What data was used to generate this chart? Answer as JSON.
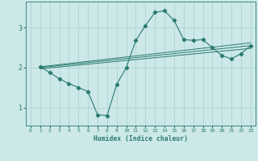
{
  "xlabel": "Humidex (Indice chaleur)",
  "bg_color": "#cce8e8",
  "grid_color": "#aed4d4",
  "line_color": "#2a7a70",
  "xlim": [
    -0.5,
    23.5
  ],
  "ylim": [
    0.55,
    3.65
  ],
  "yticks": [
    1,
    2,
    3
  ],
  "xticks": [
    0,
    1,
    2,
    3,
    4,
    5,
    6,
    7,
    8,
    9,
    10,
    11,
    12,
    13,
    14,
    15,
    16,
    17,
    18,
    19,
    20,
    21,
    22,
    23
  ],
  "series": [
    {
      "x": [
        1,
        2,
        3,
        4,
        5,
        6,
        7,
        8,
        9,
        10,
        11,
        12,
        13,
        14,
        15,
        16,
        17,
        18,
        19,
        20,
        21,
        22,
        23
      ],
      "y": [
        2.02,
        1.88,
        1.72,
        1.6,
        1.5,
        1.4,
        0.82,
        0.8,
        1.58,
        2.0,
        2.68,
        3.05,
        3.38,
        3.42,
        3.18,
        2.7,
        2.68,
        2.7,
        2.5,
        2.3,
        2.22,
        2.35,
        2.55
      ],
      "marker": true
    },
    {
      "x": [
        1,
        23
      ],
      "y": [
        2.02,
        2.62
      ],
      "marker": false
    },
    {
      "x": [
        1,
        23
      ],
      "y": [
        2.0,
        2.55
      ],
      "marker": false
    },
    {
      "x": [
        1,
        23
      ],
      "y": [
        1.97,
        2.48
      ],
      "marker": false
    }
  ]
}
